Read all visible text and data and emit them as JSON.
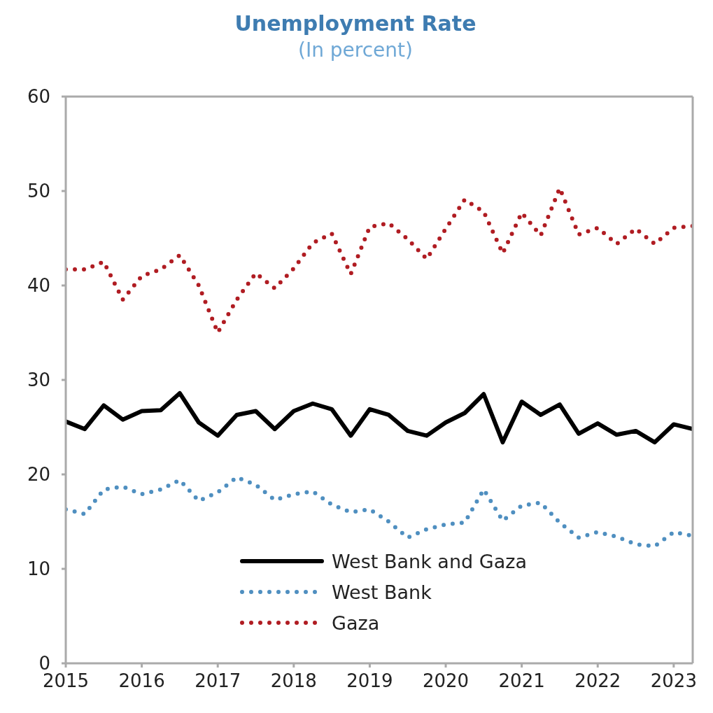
{
  "chart_data": {
    "type": "line",
    "title": "Unemployment Rate",
    "subtitle": "(In percent)",
    "x": [
      2015,
      2015.25,
      2015.5,
      2015.75,
      2016,
      2016.25,
      2016.5,
      2016.75,
      2017,
      2017.25,
      2017.5,
      2017.75,
      2018,
      2018.25,
      2018.5,
      2018.75,
      2019,
      2019.25,
      2019.5,
      2019.75,
      2020,
      2020.25,
      2020.5,
      2020.75,
      2021,
      2021.25,
      2021.5,
      2021.75,
      2022,
      2022.25,
      2022.5,
      2022.75,
      2023,
      2023.25
    ],
    "series": [
      {
        "name": "West Bank and Gaza",
        "color": "#000000",
        "line_style": "solid",
        "values": [
          25.6,
          24.8,
          27.3,
          25.8,
          26.7,
          26.8,
          28.6,
          25.5,
          24.1,
          26.3,
          26.7,
          24.8,
          26.7,
          27.5,
          26.9,
          24.1,
          26.9,
          26.3,
          24.6,
          24.1,
          25.5,
          26.5,
          28.5,
          23.4,
          27.7,
          26.3,
          27.4,
          24.3,
          25.4,
          24.2,
          24.6,
          23.4,
          25.3,
          24.8
        ]
      },
      {
        "name": "West Bank",
        "color": "#4f8fc0",
        "line_style": "dotted",
        "values": [
          16.3,
          15.8,
          18.4,
          18.7,
          17.9,
          18.4,
          19.4,
          17.2,
          18.1,
          19.7,
          18.9,
          17.3,
          17.9,
          18.2,
          16.8,
          16.0,
          16.3,
          15.0,
          13.3,
          14.2,
          14.7,
          14.9,
          18.4,
          15.1,
          16.7,
          17.0,
          14.9,
          13.3,
          13.9,
          13.4,
          12.6,
          12.4,
          13.9,
          13.5
        ]
      },
      {
        "name": "Gaza",
        "color": "#b01c22",
        "line_style": "dotted",
        "values": [
          41.7,
          41.7,
          42.5,
          38.5,
          41.0,
          41.7,
          43.2,
          40.0,
          35.0,
          38.5,
          41.3,
          39.7,
          41.8,
          44.5,
          45.5,
          41.2,
          46.2,
          46.6,
          44.9,
          42.8,
          46.0,
          49.1,
          47.8,
          43.4,
          47.7,
          45.3,
          50.3,
          45.4,
          46.1,
          44.4,
          46.0,
          44.4,
          46.1,
          46.3
        ]
      }
    ],
    "xlim": [
      2015,
      2023.25
    ],
    "xticks": [
      2015,
      2016,
      2017,
      2018,
      2019,
      2020,
      2021,
      2022,
      2023
    ],
    "ylim": [
      0,
      60
    ],
    "yticks": [
      0,
      10,
      20,
      30,
      40,
      50,
      60
    ],
    "grid": false,
    "legend": "bottom",
    "marker": "none"
  }
}
